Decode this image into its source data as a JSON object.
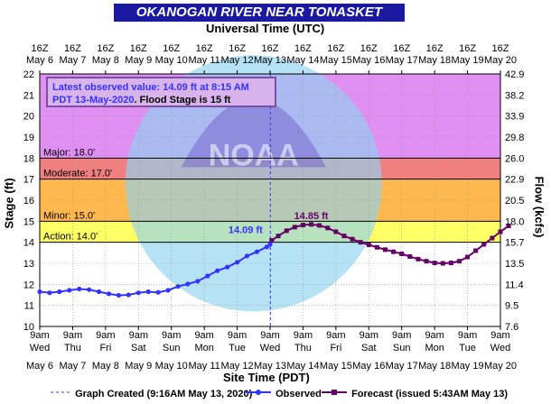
{
  "header": {
    "title": "OKANOGAN RIVER NEAR TONASKET",
    "top_axis_title": "Universal Time (UTC)",
    "bottom_axis_title": "Site Time (PDT)",
    "left_axis_title": "Stage (ft)",
    "right_axis_title": "Flow (kcfs)"
  },
  "infobox": {
    "line1": "Latest observed value: 14.09 ft at 8:15 AM",
    "line2_date": "PDT 13-May-2020",
    "line2_rest": ". Flood Stage is 15 ft"
  },
  "legend": {
    "created": "Graph Created (9:16AM May 13, 2020)",
    "observed": "Observed",
    "forecast": "Forecast (issued 5:43AM May 13)"
  },
  "watermark": "NATIONAL OCEANIC AND ATMOSPHERIC ADMINISTRATION · U.S. DEPARTMENT OF COMMERCE · NOAA",
  "chart_data": {
    "type": "line",
    "title": "OKANOGAN RIVER NEAR TONASKET",
    "xlabel": "Site Time (PDT)",
    "x_top_label": "Universal Time (UTC)",
    "ylabel": "Stage (ft)",
    "y2label": "Flow (kcfs)",
    "ylim": [
      10,
      22
    ],
    "xlim_days": [
      "May 6",
      "May 20"
    ],
    "grid": true,
    "y_ticks": [
      "10",
      "11",
      "12",
      "13",
      "14",
      "15",
      "16",
      "17",
      "18",
      "19",
      "20",
      "21",
      "22"
    ],
    "y2_ticks": [
      "7.6",
      "9.5",
      "11.4",
      "13.5",
      "15.7",
      "18.0",
      "20.5",
      "22.9",
      "26.0",
      "29.8",
      "33.9",
      "38.2",
      "42.9"
    ],
    "top_tick_labels": [
      {
        "t": "16Z",
        "d": "May  6"
      },
      {
        "t": "16Z",
        "d": "May  7"
      },
      {
        "t": "16Z",
        "d": "May  8"
      },
      {
        "t": "16Z",
        "d": "May  9"
      },
      {
        "t": "16Z",
        "d": "May 10"
      },
      {
        "t": "16Z",
        "d": "May 11"
      },
      {
        "t": "16Z",
        "d": "May 12"
      },
      {
        "t": "16Z",
        "d": "May 13"
      },
      {
        "t": "16Z",
        "d": "May 14"
      },
      {
        "t": "16Z",
        "d": "May 15"
      },
      {
        "t": "16Z",
        "d": "May 16"
      },
      {
        "t": "16Z",
        "d": "May 17"
      },
      {
        "t": "16Z",
        "d": "May 18"
      },
      {
        "t": "16Z",
        "d": "May 19"
      },
      {
        "t": "16Z",
        "d": "May 20"
      }
    ],
    "bottom_tick_labels": [
      {
        "t": "9am",
        "w": "Wed",
        "d": "May 6"
      },
      {
        "t": "9am",
        "w": "Thu",
        "d": "May 7"
      },
      {
        "t": "9am",
        "w": "Fri",
        "d": "May 8"
      },
      {
        "t": "9am",
        "w": "Sat",
        "d": "May 9"
      },
      {
        "t": "9am",
        "w": "Sun",
        "d": "May 10"
      },
      {
        "t": "9am",
        "w": "Mon",
        "d": "May 11"
      },
      {
        "t": "9am",
        "w": "Tue",
        "d": "May 12"
      },
      {
        "t": "9am",
        "w": "Wed",
        "d": "May 13"
      },
      {
        "t": "9am",
        "w": "Thu",
        "d": "May 14"
      },
      {
        "t": "9am",
        "w": "Fri",
        "d": "May 15"
      },
      {
        "t": "9am",
        "w": "Sat",
        "d": "May 16"
      },
      {
        "t": "9am",
        "w": "Sun",
        "d": "May 17"
      },
      {
        "t": "9am",
        "w": "Mon",
        "d": "May 18"
      },
      {
        "t": "9am",
        "w": "Tue",
        "d": "May 19"
      },
      {
        "t": "9am",
        "w": "Wed",
        "d": "May 20"
      }
    ],
    "flood_categories": [
      {
        "name": "Major",
        "label": "Major: 18.0'",
        "from": 18,
        "to": 22,
        "color": "#e08ff2"
      },
      {
        "name": "Moderate",
        "label": "Moderate: 17.0'",
        "from": 17,
        "to": 18,
        "color": "#f08080"
      },
      {
        "name": "Minor",
        "label": "Minor: 15.0'",
        "from": 15,
        "to": 17,
        "color": "#ffb84d"
      },
      {
        "name": "Action",
        "label": "Action: 14.0'",
        "from": 14,
        "to": 15,
        "color": "#ffff66"
      }
    ],
    "graph_created_day": 7.01,
    "series": [
      {
        "name": "Observed",
        "color": "#3333ff",
        "marker": "circle",
        "points": [
          [
            0,
            11.65
          ],
          [
            0.3,
            11.6
          ],
          [
            0.6,
            11.65
          ],
          [
            0.9,
            11.72
          ],
          [
            1.2,
            11.78
          ],
          [
            1.5,
            11.75
          ],
          [
            1.8,
            11.65
          ],
          [
            2.1,
            11.55
          ],
          [
            2.4,
            11.48
          ],
          [
            2.7,
            11.5
          ],
          [
            3.0,
            11.6
          ],
          [
            3.3,
            11.65
          ],
          [
            3.6,
            11.62
          ],
          [
            3.9,
            11.72
          ],
          [
            4.2,
            11.9
          ],
          [
            4.5,
            12.02
          ],
          [
            4.8,
            12.15
          ],
          [
            5.1,
            12.4
          ],
          [
            5.4,
            12.65
          ],
          [
            5.7,
            12.82
          ],
          [
            6.0,
            13.05
          ],
          [
            6.3,
            13.35
          ],
          [
            6.6,
            13.55
          ],
          [
            6.9,
            13.78
          ],
          [
            7.0,
            13.9
          ],
          [
            7.05,
            14.09
          ]
        ]
      },
      {
        "name": "Forecast",
        "color": "#660066",
        "marker": "square",
        "points": [
          [
            7.05,
            14.09
          ],
          [
            7.25,
            14.3
          ],
          [
            7.5,
            14.55
          ],
          [
            7.75,
            14.72
          ],
          [
            8.0,
            14.82
          ],
          [
            8.25,
            14.85
          ],
          [
            8.5,
            14.8
          ],
          [
            8.75,
            14.68
          ],
          [
            9.0,
            14.5
          ],
          [
            9.25,
            14.3
          ],
          [
            9.5,
            14.15
          ],
          [
            9.75,
            14.0
          ],
          [
            10.0,
            13.88
          ],
          [
            10.25,
            13.76
          ],
          [
            10.5,
            13.65
          ],
          [
            10.75,
            13.55
          ],
          [
            11.0,
            13.45
          ],
          [
            11.25,
            13.32
          ],
          [
            11.5,
            13.2
          ],
          [
            11.75,
            13.1
          ],
          [
            12.0,
            13.02
          ],
          [
            12.25,
            13.0
          ],
          [
            12.5,
            13.02
          ],
          [
            12.75,
            13.1
          ],
          [
            13.0,
            13.3
          ],
          [
            13.25,
            13.6
          ],
          [
            13.5,
            13.9
          ],
          [
            13.75,
            14.2
          ],
          [
            14.0,
            14.5
          ],
          [
            14.25,
            14.78
          ]
        ]
      }
    ],
    "annotations": [
      {
        "text": "14.09 ft",
        "x": 7.05,
        "y": 14.09,
        "color": "#3333ff"
      },
      {
        "text": "14.85 ft",
        "x": 8.25,
        "y": 14.85,
        "color": "#660066"
      }
    ]
  }
}
